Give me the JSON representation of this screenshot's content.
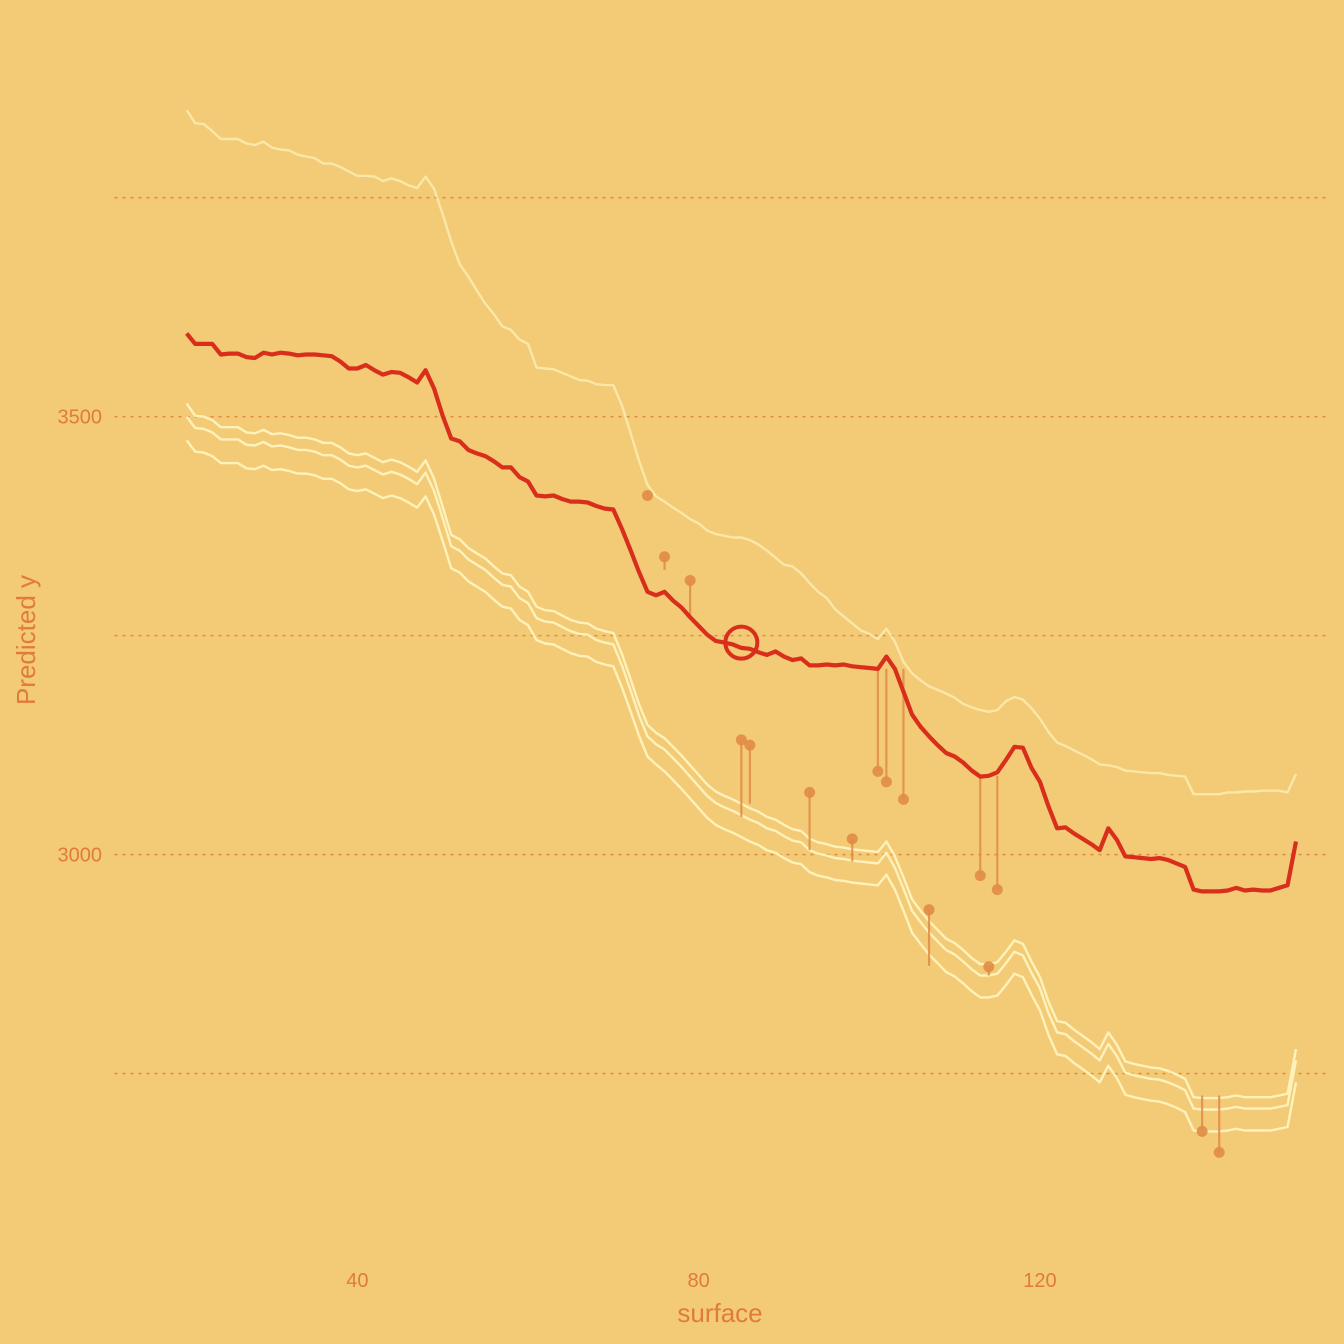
{
  "chart_data": {
    "type": "line",
    "subtype": "ceteris-paribus profile",
    "xlabel": "surface",
    "ylabel": "Predicted y",
    "xlim": [
      11.6,
      153.4
    ],
    "ylim": [
      2560,
      3930
    ],
    "x_ticks": [
      40,
      80,
      120
    ],
    "y_ticks": [
      3000,
      3500
    ],
    "y_gridlines": [
      2750,
      3000,
      3250,
      3500,
      3750
    ],
    "grid": "horizontal dotted",
    "legend": "none",
    "colors": {
      "background": "#F3CA76",
      "highlight": "#D92E1C",
      "profiles": "#FFF6C2",
      "residuals": "#E08C45",
      "grid": "#E3853E",
      "text": "#E07B3C"
    },
    "x": [
      20,
      21,
      22,
      23,
      24,
      25,
      26,
      27,
      28,
      29,
      30,
      31,
      32,
      33,
      34,
      35,
      36,
      37,
      38,
      39,
      40,
      41,
      42,
      43,
      44,
      45,
      46,
      47,
      48,
      49,
      50,
      51,
      52,
      53,
      54,
      55,
      56,
      57,
      58,
      59,
      60,
      61,
      62,
      63,
      64,
      65,
      66,
      67,
      68,
      69,
      70,
      71,
      72,
      73,
      74,
      75,
      76,
      77,
      78,
      79,
      80,
      81,
      82,
      83,
      84,
      85,
      86,
      87,
      88,
      89,
      90,
      91,
      92,
      93,
      94,
      95,
      96,
      97,
      98,
      99,
      100,
      101,
      102,
      103,
      104,
      105,
      106,
      107,
      108,
      109,
      110,
      111,
      112,
      113,
      114,
      115,
      116,
      117,
      118,
      119,
      120,
      121,
      122,
      123,
      124,
      125,
      126,
      127,
      128,
      129,
      130,
      131,
      132,
      133,
      134,
      135,
      136,
      137,
      138,
      139,
      140,
      141,
      142,
      143,
      144,
      145,
      146,
      147,
      148,
      149,
      150
    ],
    "selected_observation": {
      "x": 85,
      "y": 3242
    },
    "series": [
      {
        "role": "selected",
        "values": [
          3595,
          3583,
          3583,
          3583,
          3571,
          3572,
          3572,
          3568,
          3567,
          3573,
          3571,
          3573,
          3572,
          3570,
          3571,
          3571,
          3570,
          3569,
          3563,
          3555,
          3555,
          3559,
          3553,
          3548,
          3551,
          3550,
          3545,
          3539,
          3553,
          3532,
          3501,
          3475,
          3472,
          3462,
          3458,
          3455,
          3449,
          3442,
          3442,
          3431,
          3426,
          3410,
          3409,
          3410,
          3406,
          3403,
          3403,
          3402,
          3398,
          3395,
          3394,
          3372,
          3348,
          3323,
          3300,
          3296,
          3300,
          3290,
          3282,
          3271,
          3261,
          3251,
          3244,
          3242,
          3240,
          3236,
          3235,
          3231,
          3228,
          3232,
          3226,
          3222,
          3224,
          3216,
          3216,
          3217,
          3216,
          3217,
          3215,
          3214,
          3213,
          3212,
          3226,
          3212,
          3186,
          3160,
          3146,
          3135,
          3125,
          3116,
          3112,
          3105,
          3096,
          3089,
          3090,
          3094,
          3108,
          3123,
          3122,
          3099,
          3083,
          3055,
          3030,
          3031,
          3024,
          3018,
          3012,
          3005,
          3030,
          3017,
          2998,
          2997,
          2996,
          2995,
          2996,
          2994,
          2990,
          2986,
          2960,
          2958,
          2958,
          2958,
          2959,
          2962,
          2959,
          2960,
          2959,
          2959,
          2962,
          2965,
          3015
        ]
      },
      {
        "role": "upper",
        "values": [
          3850,
          3835,
          3834,
          3826,
          3817,
          3817,
          3817,
          3812,
          3810,
          3814,
          3807,
          3805,
          3804,
          3799,
          3797,
          3795,
          3789,
          3789,
          3785,
          3780,
          3775,
          3775,
          3774,
          3769,
          3772,
          3769,
          3764,
          3761,
          3774,
          3760,
          3731,
          3700,
          3674,
          3660,
          3644,
          3629,
          3617,
          3603,
          3599,
          3588,
          3583,
          3556,
          3555,
          3554,
          3550,
          3546,
          3542,
          3541,
          3537,
          3536,
          3536,
          3513,
          3482,
          3450,
          3422,
          3409,
          3403,
          3396,
          3390,
          3383,
          3378,
          3370,
          3366,
          3364,
          3362,
          3362,
          3359,
          3354,
          3347,
          3339,
          3331,
          3329,
          3321,
          3310,
          3300,
          3293,
          3280,
          3272,
          3264,
          3256,
          3252,
          3246,
          3258,
          3243,
          3220,
          3207,
          3199,
          3192,
          3188,
          3184,
          3179,
          3172,
          3168,
          3165,
          3163,
          3165,
          3175,
          3180,
          3177,
          3167,
          3155,
          3140,
          3128,
          3124,
          3119,
          3114,
          3109,
          3103,
          3102,
          3100,
          3096,
          3095,
          3094,
          3093,
          3093,
          3091,
          3090,
          3089,
          3069,
          3069,
          3069,
          3069,
          3071,
          3071,
          3072,
          3072,
          3073,
          3073,
          3073,
          3071,
          3092
        ]
      },
      {
        "role": "lower-near",
        "values": [
          3515,
          3501,
          3500,
          3496,
          3488,
          3488,
          3488,
          3482,
          3481,
          3485,
          3480,
          3481,
          3479,
          3476,
          3476,
          3474,
          3470,
          3470,
          3465,
          3458,
          3456,
          3458,
          3453,
          3448,
          3451,
          3448,
          3443,
          3437,
          3450,
          3429,
          3397,
          3365,
          3360,
          3350,
          3344,
          3338,
          3329,
          3321,
          3319,
          3306,
          3300,
          3283,
          3279,
          3278,
          3273,
          3268,
          3265,
          3264,
          3258,
          3255,
          3253,
          3229,
          3201,
          3172,
          3148,
          3139,
          3133,
          3123,
          3113,
          3102,
          3091,
          3080,
          3072,
          3067,
          3063,
          3058,
          3053,
          3049,
          3043,
          3040,
          3034,
          3029,
          3027,
          3018,
          3014,
          3012,
          3009,
          3008,
          3006,
          3005,
          3004,
          3003,
          3015,
          2998,
          2974,
          2949,
          2936,
          2924,
          2914,
          2904,
          2899,
          2891,
          2882,
          2875,
          2875,
          2877,
          2889,
          2902,
          2898,
          2878,
          2860,
          2832,
          2810,
          2808,
          2800,
          2793,
          2786,
          2778,
          2797,
          2783,
          2764,
          2761,
          2759,
          2757,
          2756,
          2753,
          2749,
          2744,
          2723,
          2722,
          2722,
          2722,
          2723,
          2725,
          2723,
          2723,
          2723,
          2723,
          2725,
          2727,
          2778
        ]
      },
      {
        "role": "lower-mid",
        "values": [
          3500,
          3487,
          3486,
          3482,
          3474,
          3474,
          3474,
          3468,
          3467,
          3471,
          3466,
          3467,
          3465,
          3462,
          3462,
          3460,
          3456,
          3456,
          3451,
          3444,
          3442,
          3444,
          3439,
          3434,
          3437,
          3434,
          3429,
          3423,
          3436,
          3415,
          3384,
          3352,
          3347,
          3337,
          3331,
          3325,
          3316,
          3308,
          3306,
          3293,
          3287,
          3270,
          3266,
          3265,
          3260,
          3255,
          3252,
          3251,
          3245,
          3242,
          3240,
          3216,
          3188,
          3159,
          3135,
          3126,
          3120,
          3110,
          3100,
          3089,
          3078,
          3067,
          3059,
          3054,
          3050,
          3045,
          3040,
          3036,
          3030,
          3027,
          3021,
          3016,
          3014,
          3005,
          3001,
          2999,
          2996,
          2995,
          2993,
          2992,
          2991,
          2990,
          3002,
          2985,
          2961,
          2936,
          2923,
          2911,
          2901,
          2891,
          2886,
          2878,
          2869,
          2862,
          2862,
          2864,
          2876,
          2889,
          2885,
          2865,
          2847,
          2819,
          2797,
          2795,
          2787,
          2780,
          2773,
          2765,
          2784,
          2770,
          2751,
          2748,
          2746,
          2744,
          2743,
          2740,
          2736,
          2731,
          2710,
          2709,
          2709,
          2709,
          2710,
          2712,
          2710,
          2710,
          2710,
          2710,
          2712,
          2714,
          2765
        ]
      },
      {
        "role": "lower-far",
        "values": [
          3473,
          3460,
          3459,
          3455,
          3447,
          3447,
          3447,
          3441,
          3440,
          3444,
          3439,
          3440,
          3438,
          3435,
          3435,
          3433,
          3429,
          3429,
          3424,
          3417,
          3415,
          3417,
          3412,
          3407,
          3410,
          3407,
          3402,
          3396,
          3409,
          3388,
          3358,
          3327,
          3322,
          3312,
          3306,
          3300,
          3291,
          3283,
          3281,
          3268,
          3262,
          3245,
          3241,
          3240,
          3235,
          3230,
          3227,
          3226,
          3220,
          3217,
          3215,
          3191,
          3164,
          3136,
          3112,
          3103,
          3095,
          3085,
          3075,
          3064,
          3053,
          3042,
          3034,
          3029,
          3025,
          3020,
          3015,
          3011,
          3005,
          3002,
          2996,
          2991,
          2989,
          2980,
          2976,
          2974,
          2971,
          2970,
          2968,
          2967,
          2966,
          2965,
          2977,
          2960,
          2936,
          2911,
          2898,
          2886,
          2876,
          2866,
          2861,
          2853,
          2844,
          2837,
          2837,
          2839,
          2851,
          2864,
          2860,
          2840,
          2822,
          2794,
          2772,
          2770,
          2762,
          2755,
          2748,
          2740,
          2759,
          2745,
          2726,
          2723,
          2721,
          2719,
          2718,
          2715,
          2711,
          2706,
          2685,
          2684,
          2684,
          2684,
          2685,
          2687,
          2685,
          2685,
          2685,
          2685,
          2687,
          2689,
          2740
        ]
      }
    ],
    "residuals": [
      {
        "x": 74,
        "pred": 3413,
        "obs": 3410
      },
      {
        "x": 76,
        "pred": 3325,
        "obs": 3340
      },
      {
        "x": 79,
        "pred": 3273,
        "obs": 3313
      },
      {
        "x": 85,
        "pred": 3043,
        "obs": 3131
      },
      {
        "x": 86,
        "pred": 3058,
        "obs": 3125
      },
      {
        "x": 93,
        "pred": 3005,
        "obs": 3071
      },
      {
        "x": 98,
        "pred": 2992,
        "obs": 3018
      },
      {
        "x": 101,
        "pred": 3212,
        "obs": 3095
      },
      {
        "x": 102,
        "pred": 3212,
        "obs": 3083
      },
      {
        "x": 104,
        "pred": 3212,
        "obs": 3063
      },
      {
        "x": 107,
        "pred": 2873,
        "obs": 2937
      },
      {
        "x": 113,
        "pred": 3089,
        "obs": 2976
      },
      {
        "x": 114,
        "pred": 2862,
        "obs": 2872
      },
      {
        "x": 115,
        "pred": 3090,
        "obs": 2960
      },
      {
        "x": 139,
        "pred": 2725,
        "obs": 2684
      },
      {
        "x": 141,
        "pred": 2725,
        "obs": 2660
      }
    ]
  }
}
